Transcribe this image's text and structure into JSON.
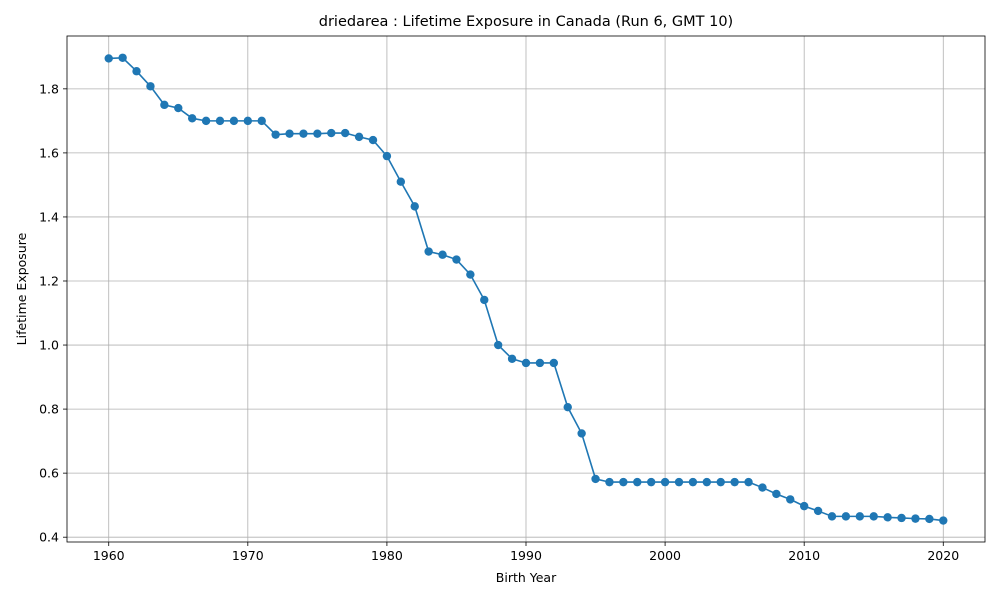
{
  "chart_data": {
    "type": "line",
    "title": "driedarea : Lifetime Exposure in Canada (Run 6, GMT 10)",
    "xlabel": "Birth Year",
    "ylabel": "Lifetime Exposure",
    "xlim": [
      1957,
      2023
    ],
    "ylim": [
      0.385,
      1.965
    ],
    "xticks": [
      1960,
      1970,
      1980,
      1990,
      2000,
      2010,
      2020
    ],
    "xtick_labels": [
      "1960",
      "1970",
      "1980",
      "1990",
      "2000",
      "2010",
      "2020"
    ],
    "yticks": [
      0.4,
      0.6,
      0.8,
      1.0,
      1.2,
      1.4,
      1.6,
      1.8
    ],
    "ytick_labels": [
      "0.4",
      "0.6",
      "0.8",
      "1.0",
      "1.2",
      "1.4",
      "1.6",
      "1.8"
    ],
    "grid": true,
    "marker": "circle",
    "color": "#1f77b4",
    "series": [
      {
        "x": [
          1960,
          1961,
          1962,
          1963,
          1964,
          1965,
          1966,
          1967,
          1968,
          1969,
          1970,
          1971,
          1972,
          1973,
          1974,
          1975,
          1976,
          1977,
          1978,
          1979,
          1980,
          1981,
          1982,
          1983,
          1984,
          1985,
          1986,
          1987,
          1988,
          1989,
          1990,
          1991,
          1992,
          1993,
          1994,
          1995,
          1996,
          1997,
          1998,
          1999,
          2000,
          2001,
          2002,
          2003,
          2004,
          2005,
          2006,
          2007,
          2008,
          2009,
          2010,
          2011,
          2012,
          2013,
          2014,
          2015,
          2016,
          2017,
          2018,
          2019,
          2020
        ],
        "values": [
          1.895,
          1.897,
          1.855,
          1.808,
          1.75,
          1.74,
          1.708,
          1.7,
          1.7,
          1.7,
          1.7,
          1.7,
          1.657,
          1.66,
          1.66,
          1.66,
          1.662,
          1.662,
          1.65,
          1.64,
          1.59,
          1.51,
          1.433,
          1.292,
          1.282,
          1.267,
          1.22,
          1.141,
          1.0,
          0.957,
          0.944,
          0.944,
          0.944,
          0.806,
          0.724,
          0.582,
          0.572,
          0.572,
          0.572,
          0.572,
          0.572,
          0.572,
          0.572,
          0.572,
          0.572,
          0.572,
          0.572,
          0.555,
          0.535,
          0.518,
          0.497,
          0.482,
          0.465,
          0.465,
          0.465,
          0.465,
          0.462,
          0.46,
          0.458,
          0.457,
          0.452
        ]
      }
    ]
  }
}
